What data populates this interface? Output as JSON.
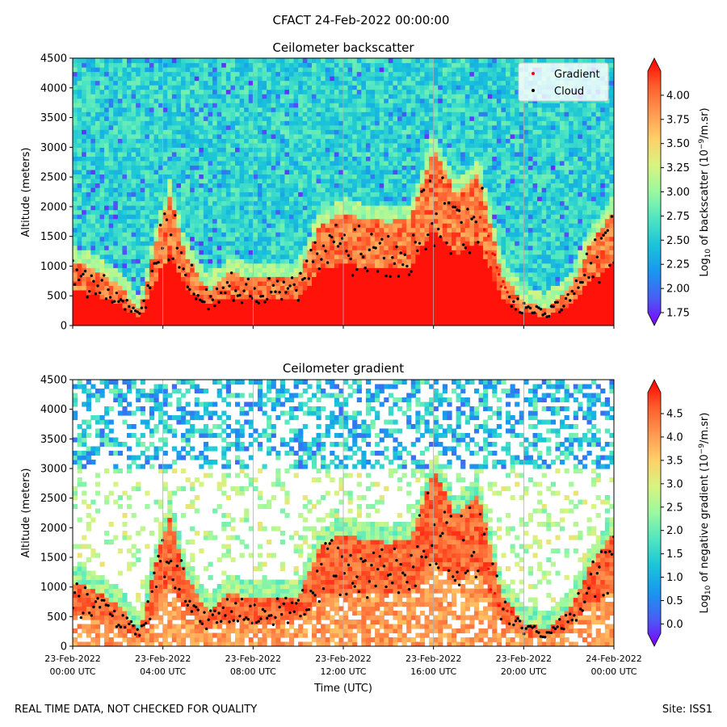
{
  "figure": {
    "title": "CFACT 24-Feb-2022 00:00:00",
    "footer_left": "REAL TIME DATA, NOT CHECKED FOR QUALITY",
    "footer_right": "Site: ISS1"
  },
  "colors": {
    "colormap": [
      "#7f00ff",
      "#4a5cf5",
      "#1996f0",
      "#19c4d8",
      "#4ee6c2",
      "#9bf8a0",
      "#d8f481",
      "#ffcf69",
      "#ff9650",
      "#ff5a2b",
      "#ff0000"
    ],
    "gradient_marker": "#ff0000",
    "cloud_marker": "#000000",
    "grid": "#b0b0b0"
  },
  "chart_data": [
    {
      "type": "heatmap",
      "title": "Ceilometer backscatter",
      "xlabel": "",
      "ylabel": "Altitude (meters)",
      "xlim_hours": [
        0,
        24
      ],
      "ylim": [
        0,
        4500
      ],
      "yticks": [
        0,
        500,
        1000,
        1500,
        2000,
        2500,
        3000,
        3500,
        4000,
        4500
      ],
      "xtick_hours": [
        0,
        4,
        8,
        12,
        16,
        20,
        24
      ],
      "xtick_labels": [],
      "grid": "vertical",
      "colorbar": {
        "label_pre": "Log",
        "label_sub": "10",
        "label_mid": " of backscatter (10",
        "label_sup": "−9",
        "label_post": "/m.sr)",
        "range": [
          1.75,
          4.25
        ],
        "ticks": [
          "1.75",
          "2.00",
          "2.25",
          "2.50",
          "2.75",
          "3.00",
          "3.25",
          "3.50",
          "3.75",
          "4.00"
        ]
      },
      "legend": {
        "position": "top-right",
        "entries": [
          {
            "label": "Gradient",
            "color": "#ff0000"
          },
          {
            "label": "Cloud",
            "color": "#000000"
          }
        ]
      },
      "boundary_layer_top": {
        "hours": [
          0,
          1,
          2,
          3,
          3.8,
          4.3,
          5,
          6,
          7,
          8,
          9,
          10,
          11,
          12,
          13,
          14,
          15,
          16,
          17,
          18,
          19,
          20,
          21,
          22,
          23,
          24
        ],
        "meters": [
          1100,
          950,
          700,
          250,
          1600,
          2200,
          1200,
          600,
          900,
          800,
          800,
          850,
          1700,
          1900,
          1800,
          1750,
          1800,
          3000,
          2200,
          2600,
          900,
          400,
          300,
          600,
          1400,
          1950
        ]
      }
    },
    {
      "type": "heatmap",
      "title": "Ceilometer gradient",
      "xlabel": "Time (UTC)",
      "ylabel": "Altitude (meters)",
      "xlim_hours": [
        0,
        24
      ],
      "ylim": [
        0,
        4500
      ],
      "yticks": [
        0,
        500,
        1000,
        1500,
        2000,
        2500,
        3000,
        3500,
        4000,
        4500
      ],
      "xtick_hours": [
        0,
        4,
        8,
        12,
        16,
        20,
        24
      ],
      "xtick_labels": [
        [
          "23-Feb-2022",
          "00:00 UTC"
        ],
        [
          "23-Feb-2022",
          "04:00 UTC"
        ],
        [
          "23-Feb-2022",
          "08:00 UTC"
        ],
        [
          "23-Feb-2022",
          "12:00 UTC"
        ],
        [
          "23-Feb-2022",
          "16:00 UTC"
        ],
        [
          "23-Feb-2022",
          "20:00 UTC"
        ],
        [
          "24-Feb-2022",
          "00:00 UTC"
        ]
      ],
      "grid": "vertical",
      "colorbar": {
        "label_pre": "Log",
        "label_sub": "10",
        "label_mid": " of negative gradient (10",
        "label_sup": "−9",
        "label_post": "/m.sr)",
        "range": [
          -0.2,
          4.95
        ],
        "ticks": [
          "0.0",
          "0.5",
          "1.0",
          "1.5",
          "2.0",
          "2.5",
          "3.0",
          "3.5",
          "4.0",
          "4.5"
        ]
      }
    }
  ]
}
